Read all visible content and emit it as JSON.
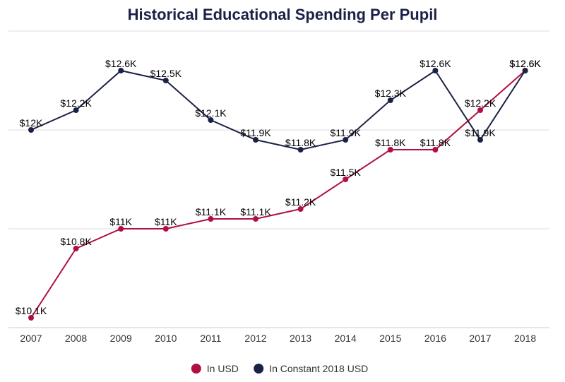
{
  "chart_data": {
    "type": "line",
    "title": "Historical Educational Spending Per Pupil",
    "xlabel": "",
    "ylabel": "",
    "categories": [
      "2007",
      "2008",
      "2009",
      "2010",
      "2011",
      "2012",
      "2013",
      "2014",
      "2015",
      "2016",
      "2017",
      "2018"
    ],
    "series": [
      {
        "name": "In USD",
        "color": "#b0103f",
        "values": [
          10.1,
          10.8,
          11.0,
          11.0,
          11.1,
          11.1,
          11.2,
          11.5,
          11.8,
          11.8,
          12.2,
          12.6
        ],
        "labels": [
          "$10.1K",
          "$10.8K",
          "$11K",
          "$11K",
          "$11.1K",
          "$11.1K",
          "$11.2K",
          "$11.5K",
          "$11.8K",
          "$11.8K",
          "$12.2K",
          "$12.6K"
        ]
      },
      {
        "name": "In Constant 2018 USD",
        "color": "#1b2146",
        "values": [
          12.0,
          12.2,
          12.6,
          12.5,
          12.1,
          11.9,
          11.8,
          11.9,
          12.3,
          12.6,
          11.9,
          12.6
        ],
        "labels": [
          "$12K",
          "$12.2K",
          "$12.6K",
          "$12.5K",
          "$12.1K",
          "$11.9K",
          "$11.8K",
          "$11.9K",
          "$12.3K",
          "$12.6K",
          "$11.9K",
          "$12.6K"
        ]
      }
    ],
    "ylim": [
      10,
      13
    ],
    "gridlines": [
      11,
      12,
      13
    ],
    "grid": true,
    "legend": "bottom-center"
  }
}
